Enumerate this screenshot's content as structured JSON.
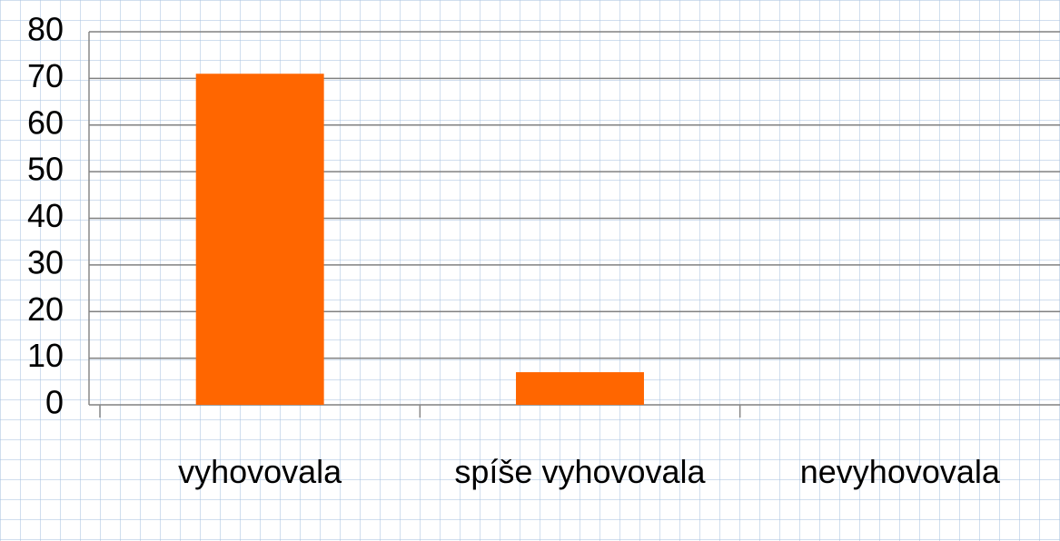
{
  "chart_data": {
    "type": "bar",
    "categories": [
      "vyhovovala",
      "spíše vyhovovala",
      "nevyhovovala"
    ],
    "values": [
      71,
      7,
      0
    ],
    "color": "#ff6600",
    "ylim": [
      0,
      80
    ],
    "yticks": [
      0,
      10,
      20,
      30,
      40,
      50,
      60,
      70,
      80
    ],
    "grid": true
  }
}
